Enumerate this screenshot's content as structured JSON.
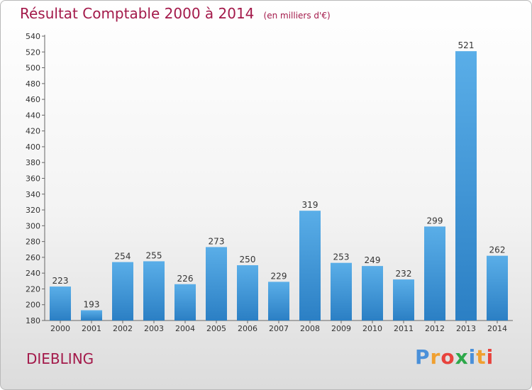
{
  "chart_data": {
    "type": "bar",
    "title": "Résultat Comptable 2000 à 2014",
    "unit_label": "(en milliers d'€)",
    "categories": [
      "2000",
      "2001",
      "2002",
      "2003",
      "2004",
      "2005",
      "2006",
      "2007",
      "2008",
      "2009",
      "2010",
      "2011",
      "2012",
      "2013",
      "2014"
    ],
    "values": [
      223,
      193,
      254,
      255,
      226,
      273,
      250,
      229,
      319,
      253,
      249,
      232,
      299,
      521,
      262
    ],
    "ylim": [
      180,
      540
    ],
    "ytick_step": 20,
    "grid": false,
    "bar_color": "#3d98d8"
  },
  "commune": "DIEBLING",
  "logo": {
    "letters": [
      "P",
      "r",
      "o",
      "x",
      "i",
      "t",
      "i"
    ],
    "colors": [
      "#4a90d9",
      "#f0a030",
      "#e8433d",
      "#2da84a",
      "#4a90d9",
      "#f0a030",
      "#e8433d"
    ]
  }
}
